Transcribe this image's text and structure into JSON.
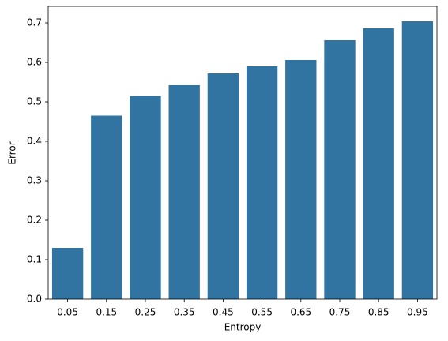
{
  "chart_data": {
    "type": "bar",
    "x_label": "Entropy",
    "y_label": "Error",
    "categories": [
      "0.05",
      "0.15",
      "0.25",
      "0.35",
      "0.45",
      "0.55",
      "0.65",
      "0.75",
      "0.85",
      "0.95"
    ],
    "values": [
      0.13,
      0.465,
      0.515,
      0.542,
      0.572,
      0.59,
      0.606,
      0.656,
      0.686,
      0.704
    ],
    "color": "#3274a1",
    "ylim": [
      0,
      0.742
    ],
    "yticks": [
      {
        "value": 0,
        "label": "0.0"
      },
      0.1,
      0.2,
      0.3,
      0.4,
      0.5,
      0.6,
      0.7
    ],
    "grid": false
  }
}
